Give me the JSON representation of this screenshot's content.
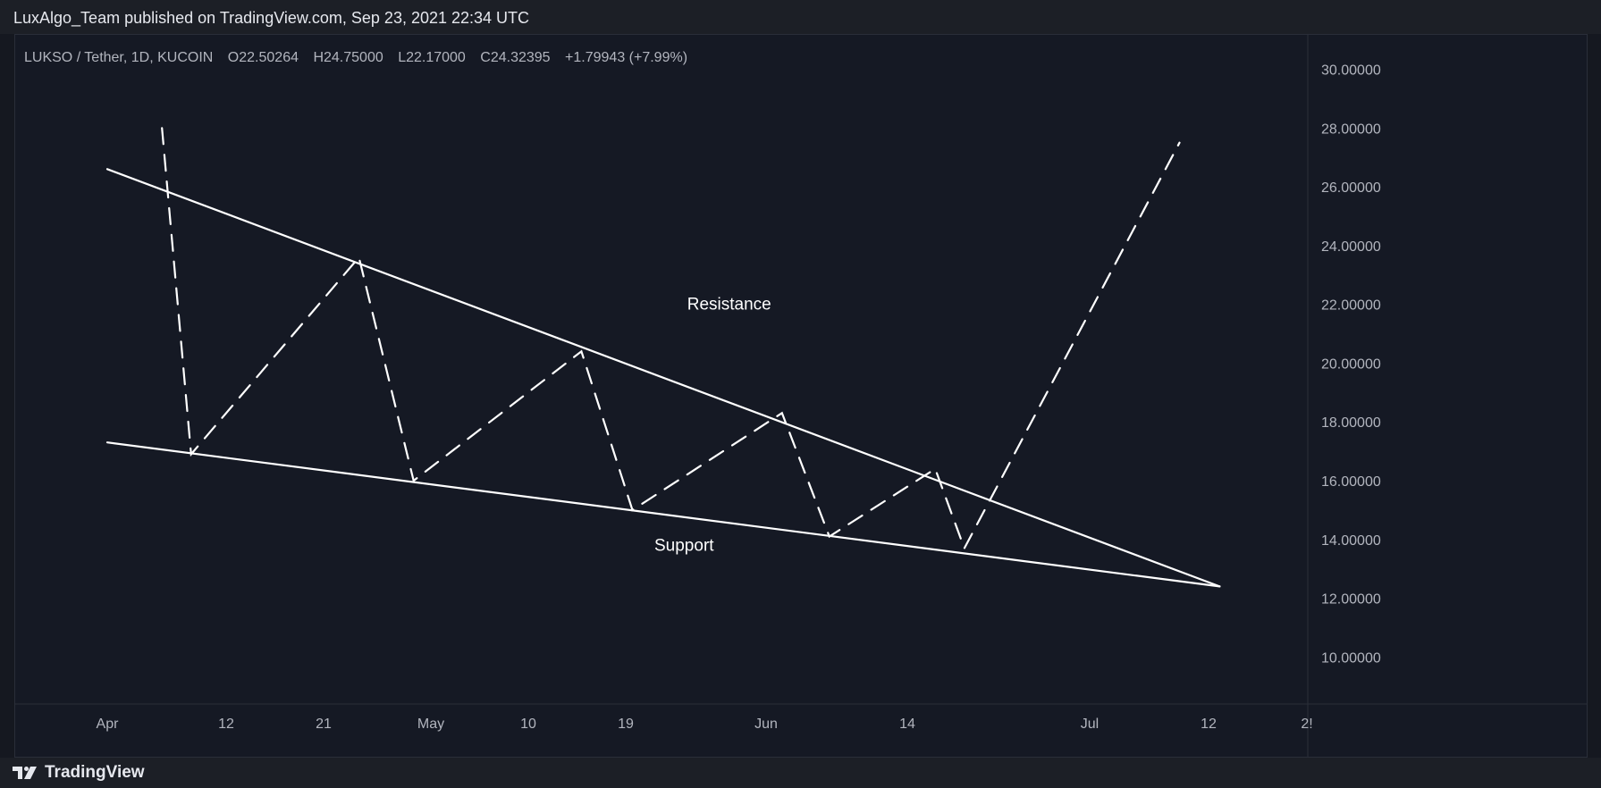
{
  "header": {
    "publisher_line": "LuxAlgo_Team published on TradingView.com, Sep 23, 2021 22:34 UTC"
  },
  "footer": {
    "brand": "TradingView"
  },
  "chart_data": {
    "type": "line",
    "title": "LUKSO / Tether, 1D, KUCOIN",
    "ohlc": {
      "open_label": "O",
      "open": "22.50264",
      "high_label": "H",
      "high": "24.75000",
      "low_label": "L",
      "low": "22.17000",
      "close_label": "C",
      "close": "24.32395",
      "change": "+1.79943 (+7.99%)"
    },
    "ylim": [
      8.4,
      31.2
    ],
    "y_ticks": [
      "30.00000",
      "28.00000",
      "26.00000",
      "24.00000",
      "22.00000",
      "20.00000",
      "18.00000",
      "16.00000",
      "14.00000",
      "12.00000",
      "10.00000"
    ],
    "x_ticks": [
      "Apr",
      "12",
      "21",
      "May",
      "10",
      "19",
      "Jun",
      "14",
      "Jul",
      "12",
      "2!"
    ],
    "grid": false,
    "colors": {
      "background": "#151924",
      "lines": "#ffffff",
      "text": "#b2b5be",
      "accent_up": "#26a69a"
    },
    "series": [
      {
        "name": "Resistance",
        "style": "solid",
        "points": [
          [
            0,
            26.6
          ],
          [
            30.5,
            12.4
          ]
        ]
      },
      {
        "name": "Support",
        "style": "solid",
        "points": [
          [
            0,
            17.3
          ],
          [
            30.5,
            12.4
          ]
        ]
      },
      {
        "name": "",
        "style": "dashed",
        "points": [
          [
            1.5,
            28.0
          ],
          [
            2.3,
            16.9
          ],
          [
            6.9,
            23.6
          ],
          [
            8.4,
            16.0
          ],
          [
            13.0,
            20.4
          ],
          [
            14.4,
            15.0
          ],
          [
            18.5,
            18.3
          ],
          [
            19.8,
            14.1
          ],
          [
            22.7,
            16.4
          ],
          [
            23.5,
            13.7
          ],
          [
            29.4,
            27.5
          ]
        ]
      }
    ],
    "annotations": [
      {
        "text": "Resistance",
        "x": 15.9,
        "y": 22.0
      },
      {
        "text": "Support",
        "x": 15.0,
        "y": 13.8
      }
    ]
  }
}
